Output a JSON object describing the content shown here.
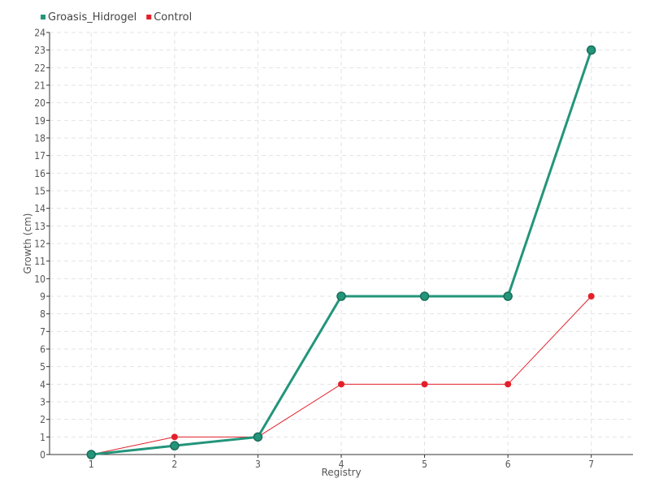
{
  "chart_data": {
    "type": "line",
    "xlabel": "Registry",
    "ylabel": "Growth (cm)",
    "x": [
      1,
      2,
      3,
      4,
      5,
      6,
      7
    ],
    "xlim": [
      0.5,
      7.5
    ],
    "ylim": [
      0,
      24
    ],
    "y_ticks": [
      0,
      1,
      2,
      3,
      4,
      5,
      6,
      7,
      8,
      9,
      10,
      11,
      12,
      13,
      14,
      15,
      16,
      17,
      18,
      19,
      20,
      21,
      22,
      23,
      24
    ],
    "grid": true,
    "legend_position": "top-left",
    "series": [
      {
        "name": "Groasis_Hidrogel",
        "color": "#23957a",
        "values": [
          0,
          0.5,
          1,
          9,
          9,
          9,
          23
        ]
      },
      {
        "name": "Control",
        "color": "#e3202a",
        "values": [
          0,
          1,
          1,
          4,
          4,
          4,
          9
        ]
      }
    ]
  }
}
